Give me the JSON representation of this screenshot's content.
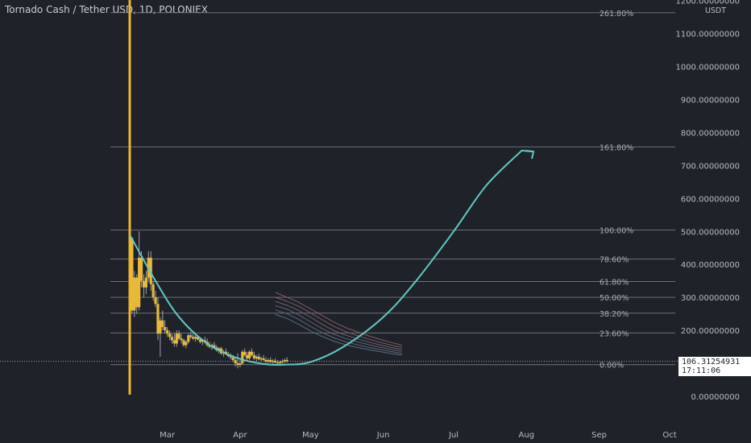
{
  "header": {
    "title": "Tornado Cash / Tether USD, 1D, POLONIEX"
  },
  "axis": {
    "currency": "USDT",
    "last_price": "106.31254931",
    "countdown": "17:11:06"
  },
  "colors": {
    "background": "#1f2229",
    "fib_line": "#6c7079",
    "fib_label": "#a9adb5",
    "axis_text": "#b7bcc4",
    "curve": "#5fc9c3",
    "candle_up": "#e8b93b",
    "candle_down": "#e8b93b",
    "wick": "#9aa0aa",
    "spike": "#f0b429"
  },
  "chart_data": {
    "type": "candlestick",
    "title": "Tornado Cash / Tether USD, 1D, POLONIEX",
    "x_tick_labels": [
      "Mar",
      "Apr",
      "May",
      "Jun",
      "Jul",
      "Aug",
      "Sep",
      "Oct"
    ],
    "y_tick_labels": [
      "0.00000000",
      "100.00000000",
      "200.00000000",
      "300.00000000",
      "400.00000000",
      "500.00000000",
      "600.00000000",
      "700.00000000",
      "800.00000000",
      "900.00000000",
      "1000.00000000",
      "1100.00000000",
      "1200.00000000"
    ],
    "y_ticks": [
      0,
      100,
      200,
      300,
      400,
      500,
      600,
      700,
      800,
      900,
      1000,
      1100,
      1200
    ],
    "ylim": [
      -25,
      1215
    ],
    "fibonacci": [
      {
        "label": "0.00%",
        "value": 96
      },
      {
        "label": "23.60%",
        "value": 192
      },
      {
        "label": "38.20%",
        "value": 252
      },
      {
        "label": "50.00%",
        "value": 300
      },
      {
        "label": "61.80%",
        "value": 348
      },
      {
        "label": "78.60%",
        "value": 416
      },
      {
        "label": "100.00%",
        "value": 504
      },
      {
        "label": "161.80%",
        "value": 756
      },
      {
        "label": "261.80%",
        "value": 1163
      }
    ],
    "spike": {
      "date": "2021-02-13",
      "low": 5,
      "high": 1215
    },
    "candles": [
      {
        "date": "2021-02-14",
        "o": 480,
        "h": 480,
        "l": 250,
        "c": 260
      },
      {
        "date": "2021-02-15",
        "o": 260,
        "h": 380,
        "l": 240,
        "c": 360
      },
      {
        "date": "2021-02-16",
        "o": 360,
        "h": 370,
        "l": 250,
        "c": 270
      },
      {
        "date": "2021-02-17",
        "o": 270,
        "h": 500,
        "l": 260,
        "c": 420
      },
      {
        "date": "2021-02-18",
        "o": 420,
        "h": 440,
        "l": 330,
        "c": 350
      },
      {
        "date": "2021-02-19",
        "o": 350,
        "h": 370,
        "l": 300,
        "c": 330
      },
      {
        "date": "2021-02-20",
        "o": 330,
        "h": 380,
        "l": 310,
        "c": 360
      },
      {
        "date": "2021-02-21",
        "o": 360,
        "h": 440,
        "l": 350,
        "c": 420
      },
      {
        "date": "2021-02-22",
        "o": 420,
        "h": 440,
        "l": 320,
        "c": 340
      },
      {
        "date": "2021-02-23",
        "o": 340,
        "h": 350,
        "l": 290,
        "c": 300
      },
      {
        "date": "2021-02-24",
        "o": 300,
        "h": 320,
        "l": 270,
        "c": 280
      },
      {
        "date": "2021-02-25",
        "o": 280,
        "h": 300,
        "l": 170,
        "c": 190
      },
      {
        "date": "2021-02-26",
        "o": 190,
        "h": 240,
        "l": 120,
        "c": 230
      },
      {
        "date": "2021-02-27",
        "o": 230,
        "h": 260,
        "l": 200,
        "c": 210
      },
      {
        "date": "2021-02-28",
        "o": 210,
        "h": 230,
        "l": 190,
        "c": 200
      },
      {
        "date": "2021-03-01",
        "o": 200,
        "h": 210,
        "l": 180,
        "c": 190
      },
      {
        "date": "2021-03-02",
        "o": 190,
        "h": 200,
        "l": 170,
        "c": 180
      },
      {
        "date": "2021-03-03",
        "o": 180,
        "h": 190,
        "l": 160,
        "c": 170
      },
      {
        "date": "2021-03-04",
        "o": 170,
        "h": 190,
        "l": 150,
        "c": 160
      },
      {
        "date": "2021-03-05",
        "o": 160,
        "h": 200,
        "l": 150,
        "c": 190
      },
      {
        "date": "2021-03-06",
        "o": 190,
        "h": 200,
        "l": 170,
        "c": 175
      },
      {
        "date": "2021-03-07",
        "o": 175,
        "h": 190,
        "l": 160,
        "c": 170
      },
      {
        "date": "2021-03-08",
        "o": 170,
        "h": 175,
        "l": 150,
        "c": 155
      },
      {
        "date": "2021-03-09",
        "o": 155,
        "h": 170,
        "l": 145,
        "c": 165
      },
      {
        "date": "2021-03-10",
        "o": 165,
        "h": 190,
        "l": 160,
        "c": 185
      },
      {
        "date": "2021-03-11",
        "o": 185,
        "h": 195,
        "l": 175,
        "c": 180
      },
      {
        "date": "2021-03-12",
        "o": 180,
        "h": 190,
        "l": 170,
        "c": 175
      },
      {
        "date": "2021-03-13",
        "o": 175,
        "h": 185,
        "l": 165,
        "c": 180
      },
      {
        "date": "2021-03-14",
        "o": 180,
        "h": 185,
        "l": 170,
        "c": 172
      },
      {
        "date": "2021-03-15",
        "o": 172,
        "h": 180,
        "l": 160,
        "c": 165
      },
      {
        "date": "2021-03-16",
        "o": 165,
        "h": 175,
        "l": 155,
        "c": 170
      },
      {
        "date": "2021-03-17",
        "o": 170,
        "h": 180,
        "l": 160,
        "c": 165
      },
      {
        "date": "2021-03-18",
        "o": 165,
        "h": 175,
        "l": 150,
        "c": 155
      },
      {
        "date": "2021-03-19",
        "o": 155,
        "h": 165,
        "l": 145,
        "c": 150
      },
      {
        "date": "2021-03-20",
        "o": 150,
        "h": 160,
        "l": 140,
        "c": 155
      },
      {
        "date": "2021-03-21",
        "o": 155,
        "h": 165,
        "l": 145,
        "c": 148
      },
      {
        "date": "2021-03-22",
        "o": 148,
        "h": 155,
        "l": 135,
        "c": 140
      },
      {
        "date": "2021-03-23",
        "o": 140,
        "h": 150,
        "l": 130,
        "c": 145
      },
      {
        "date": "2021-03-24",
        "o": 145,
        "h": 150,
        "l": 125,
        "c": 130
      },
      {
        "date": "2021-03-25",
        "o": 130,
        "h": 140,
        "l": 120,
        "c": 135
      },
      {
        "date": "2021-03-26",
        "o": 135,
        "h": 145,
        "l": 125,
        "c": 128
      },
      {
        "date": "2021-03-27",
        "o": 128,
        "h": 135,
        "l": 118,
        "c": 122
      },
      {
        "date": "2021-03-28",
        "o": 122,
        "h": 130,
        "l": 112,
        "c": 118
      },
      {
        "date": "2021-03-29",
        "o": 118,
        "h": 125,
        "l": 105,
        "c": 110
      },
      {
        "date": "2021-03-30",
        "o": 110,
        "h": 120,
        "l": 90,
        "c": 100
      },
      {
        "date": "2021-03-31",
        "o": 100,
        "h": 130,
        "l": 85,
        "c": 95
      },
      {
        "date": "2021-04-01",
        "o": 95,
        "h": 110,
        "l": 88,
        "c": 100
      },
      {
        "date": "2021-04-02",
        "o": 100,
        "h": 140,
        "l": 95,
        "c": 135
      },
      {
        "date": "2021-04-03",
        "o": 135,
        "h": 145,
        "l": 120,
        "c": 125
      },
      {
        "date": "2021-04-04",
        "o": 125,
        "h": 135,
        "l": 110,
        "c": 115
      },
      {
        "date": "2021-04-05",
        "o": 115,
        "h": 140,
        "l": 110,
        "c": 135
      },
      {
        "date": "2021-04-06",
        "o": 135,
        "h": 145,
        "l": 120,
        "c": 125
      },
      {
        "date": "2021-04-07",
        "o": 125,
        "h": 135,
        "l": 110,
        "c": 115
      },
      {
        "date": "2021-04-08",
        "o": 115,
        "h": 125,
        "l": 105,
        "c": 120
      },
      {
        "date": "2021-04-09",
        "o": 120,
        "h": 130,
        "l": 110,
        "c": 112
      },
      {
        "date": "2021-04-10",
        "o": 112,
        "h": 120,
        "l": 105,
        "c": 115
      },
      {
        "date": "2021-04-11",
        "o": 115,
        "h": 125,
        "l": 108,
        "c": 110
      },
      {
        "date": "2021-04-12",
        "o": 110,
        "h": 118,
        "l": 100,
        "c": 105
      },
      {
        "date": "2021-04-13",
        "o": 105,
        "h": 115,
        "l": 98,
        "c": 110
      },
      {
        "date": "2021-04-14",
        "o": 110,
        "h": 118,
        "l": 100,
        "c": 104
      },
      {
        "date": "2021-04-15",
        "o": 104,
        "h": 112,
        "l": 96,
        "c": 108
      },
      {
        "date": "2021-04-16",
        "o": 108,
        "h": 115,
        "l": 100,
        "c": 102
      },
      {
        "date": "2021-04-17",
        "o": 102,
        "h": 110,
        "l": 95,
        "c": 100
      },
      {
        "date": "2021-04-18",
        "o": 100,
        "h": 108,
        "l": 93,
        "c": 104
      },
      {
        "date": "2021-04-19",
        "o": 104,
        "h": 112,
        "l": 98,
        "c": 106
      },
      {
        "date": "2021-04-20",
        "o": 106,
        "h": 115,
        "l": 100,
        "c": 110
      },
      {
        "date": "2021-04-21",
        "o": 110,
        "h": 118,
        "l": 102,
        "c": 106
      }
    ],
    "ribbon_mas": [
      [
        [
          62,
          315
        ],
        [
          67,
          300
        ],
        [
          72,
          285
        ],
        [
          77,
          265
        ],
        [
          82,
          245
        ],
        [
          87,
          225
        ],
        [
          92,
          208
        ],
        [
          97,
          195
        ],
        [
          102,
          183
        ],
        [
          107,
          172
        ],
        [
          112,
          162
        ],
        [
          116,
          155
        ]
      ],
      [
        [
          62,
          300
        ],
        [
          67,
          288
        ],
        [
          72,
          273
        ],
        [
          77,
          253
        ],
        [
          82,
          232
        ],
        [
          87,
          212
        ],
        [
          92,
          196
        ],
        [
          97,
          184
        ],
        [
          102,
          173
        ],
        [
          107,
          163
        ],
        [
          112,
          154
        ],
        [
          116,
          148
        ]
      ],
      [
        [
          62,
          288
        ],
        [
          67,
          276
        ],
        [
          72,
          260
        ],
        [
          77,
          240
        ],
        [
          82,
          218
        ],
        [
          87,
          199
        ],
        [
          92,
          185
        ],
        [
          97,
          174
        ],
        [
          102,
          164
        ],
        [
          107,
          155
        ],
        [
          112,
          147
        ],
        [
          116,
          142
        ]
      ],
      [
        [
          62,
          275
        ],
        [
          67,
          264
        ],
        [
          72,
          247
        ],
        [
          77,
          226
        ],
        [
          82,
          205
        ],
        [
          87,
          188
        ],
        [
          92,
          175
        ],
        [
          97,
          165
        ],
        [
          102,
          156
        ],
        [
          107,
          148
        ],
        [
          112,
          141
        ],
        [
          116,
          136
        ]
      ],
      [
        [
          62,
          262
        ],
        [
          67,
          250
        ],
        [
          72,
          233
        ],
        [
          77,
          212
        ],
        [
          82,
          193
        ],
        [
          87,
          177
        ],
        [
          92,
          165
        ],
        [
          97,
          156
        ],
        [
          102,
          148
        ],
        [
          107,
          141
        ],
        [
          112,
          135
        ],
        [
          116,
          130
        ]
      ],
      [
        [
          62,
          248
        ],
        [
          67,
          236
        ],
        [
          72,
          218
        ],
        [
          77,
          198
        ],
        [
          82,
          181
        ],
        [
          87,
          167
        ],
        [
          92,
          156
        ],
        [
          97,
          148
        ],
        [
          102,
          141
        ],
        [
          107,
          135
        ],
        [
          112,
          129
        ],
        [
          116,
          125
        ]
      ]
    ],
    "projection_curve": {
      "color": "#5fc9c3",
      "points": [
        [
          "2021-02-13",
          490
        ],
        [
          "2021-02-24",
          350
        ],
        [
          "2021-03-06",
          240
        ],
        [
          "2021-03-18",
          160
        ],
        [
          "2021-03-30",
          118
        ],
        [
          "2021-04-11",
          98
        ],
        [
          "2021-04-20",
          96
        ],
        [
          "2021-05-01",
          104
        ],
        [
          "2021-05-15",
          150
        ],
        [
          "2021-06-01",
          240
        ],
        [
          "2021-06-15",
          350
        ],
        [
          "2021-07-01",
          500
        ],
        [
          "2021-07-15",
          640
        ],
        [
          "2021-07-30",
          745
        ]
      ],
      "arrow_end": [
        "2021-08-04",
        742
      ]
    },
    "current_price": 106.31254931
  }
}
